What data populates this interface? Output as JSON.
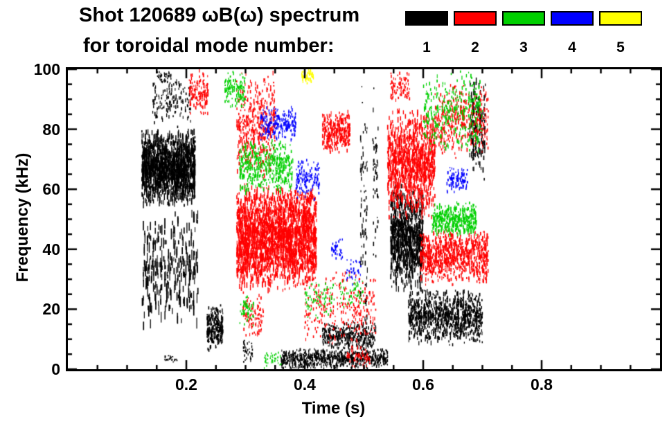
{
  "header": {
    "title_line1": "Shot 120689 ωB(ω) spectrum",
    "title_line2": "for toroidal mode number:"
  },
  "legend": {
    "entries": [
      {
        "label": "1",
        "color": "#000000"
      },
      {
        "label": "2",
        "color": "#ff0000"
      },
      {
        "label": "3",
        "color": "#00d000"
      },
      {
        "label": "4",
        "color": "#0000ff"
      },
      {
        "label": "5",
        "color": "#ffff00"
      }
    ]
  },
  "chart_data": {
    "type": "scatter",
    "title": "Shot 120689 ωB(ω) spectrum for toroidal mode number",
    "xlabel": "Time (s)",
    "ylabel": "Frequency (kHz)",
    "xlim": [
      0.0,
      1.0
    ],
    "ylim": [
      0,
      100
    ],
    "xticks": [
      0.2,
      0.4,
      0.6,
      0.8
    ],
    "xtick_labels": [
      "0.2",
      "0.4",
      "0.6",
      "0.8"
    ],
    "yticks": [
      0,
      20,
      40,
      60,
      80,
      100
    ],
    "ytick_labels": [
      "0",
      "20",
      "40",
      "60",
      "80",
      "100"
    ],
    "x_minor_step": 0.05,
    "y_minor_step": 5,
    "grid": false,
    "legend_position": "top-right",
    "cluster_format": [
      "t_min_s",
      "t_max_s",
      "freq_min_kHz",
      "freq_max_kHz",
      "n_points",
      "streak_min_px",
      "streak_max_px"
    ],
    "series": [
      {
        "name": "toroidal mode n=1",
        "color": "#000000",
        "clusters": [
          [
            0.125,
            0.215,
            54,
            80,
            1500,
            3,
            10
          ],
          [
            0.125,
            0.22,
            12,
            54,
            300,
            5,
            16
          ],
          [
            0.14,
            0.21,
            80,
            97,
            140,
            2,
            6
          ],
          [
            0.15,
            0.175,
            95,
            100,
            40,
            2,
            4
          ],
          [
            0.235,
            0.262,
            6,
            22,
            280,
            2,
            6
          ],
          [
            0.163,
            0.186,
            2,
            5,
            30,
            1,
            3
          ],
          [
            0.36,
            0.54,
            0,
            7,
            750,
            2,
            5
          ],
          [
            0.43,
            0.52,
            6,
            16,
            380,
            2,
            5
          ],
          [
            0.494,
            0.506,
            0,
            100,
            80,
            2,
            8
          ],
          [
            0.514,
            0.524,
            35,
            100,
            45,
            2,
            7
          ],
          [
            0.545,
            0.6,
            25,
            62,
            850,
            3,
            10
          ],
          [
            0.575,
            0.7,
            8,
            27,
            950,
            2,
            7
          ],
          [
            0.678,
            0.705,
            62,
            100,
            170,
            3,
            9
          ],
          [
            0.296,
            0.312,
            2,
            10,
            40,
            2,
            4
          ]
        ]
      },
      {
        "name": "toroidal mode n=2",
        "color": "#ff0000",
        "clusters": [
          [
            0.285,
            0.42,
            26,
            62,
            2400,
            3,
            9
          ],
          [
            0.285,
            0.35,
            62,
            100,
            400,
            2,
            7
          ],
          [
            0.205,
            0.237,
            84,
            100,
            140,
            2,
            6
          ],
          [
            0.43,
            0.477,
            72,
            86,
            300,
            2,
            6
          ],
          [
            0.4,
            0.52,
            8,
            34,
            300,
            2,
            5
          ],
          [
            0.54,
            0.62,
            50,
            88,
            950,
            3,
            9
          ],
          [
            0.595,
            0.71,
            28,
            47,
            850,
            2,
            7
          ],
          [
            0.62,
            0.71,
            70,
            96,
            380,
            2,
            6
          ],
          [
            0.545,
            0.577,
            88,
            100,
            90,
            2,
            5
          ],
          [
            0.295,
            0.33,
            10,
            26,
            100,
            2,
            5
          ],
          [
            0.47,
            0.51,
            0,
            8,
            70,
            2,
            4
          ]
        ]
      },
      {
        "name": "toroidal mode n=3",
        "color": "#00d000",
        "clusters": [
          [
            0.29,
            0.38,
            58,
            77,
            450,
            2,
            6
          ],
          [
            0.265,
            0.3,
            86,
            100,
            130,
            2,
            5
          ],
          [
            0.6,
            0.7,
            72,
            100,
            340,
            2,
            6
          ],
          [
            0.615,
            0.69,
            44,
            56,
            380,
            2,
            6
          ],
          [
            0.29,
            0.315,
            14,
            26,
            60,
            2,
            4
          ],
          [
            0.4,
            0.45,
            16,
            30,
            70,
            2,
            4
          ],
          [
            0.46,
            0.5,
            20,
            32,
            50,
            2,
            4
          ],
          [
            0.33,
            0.36,
            0,
            6,
            40,
            2,
            3
          ]
        ]
      },
      {
        "name": "toroidal mode n=4",
        "color": "#0000ff",
        "clusters": [
          [
            0.325,
            0.385,
            76,
            88,
            220,
            2,
            5
          ],
          [
            0.385,
            0.425,
            56,
            70,
            130,
            2,
            5
          ],
          [
            0.64,
            0.675,
            58,
            68,
            100,
            2,
            5
          ],
          [
            0.445,
            0.465,
            36,
            44,
            40,
            2,
            4
          ],
          [
            0.47,
            0.495,
            28,
            38,
            35,
            2,
            4
          ]
        ]
      },
      {
        "name": "toroidal mode n=5",
        "color": "#ffff00",
        "clusters": [
          [
            0.395,
            0.415,
            95,
            100,
            50,
            2,
            5
          ]
        ]
      }
    ]
  }
}
